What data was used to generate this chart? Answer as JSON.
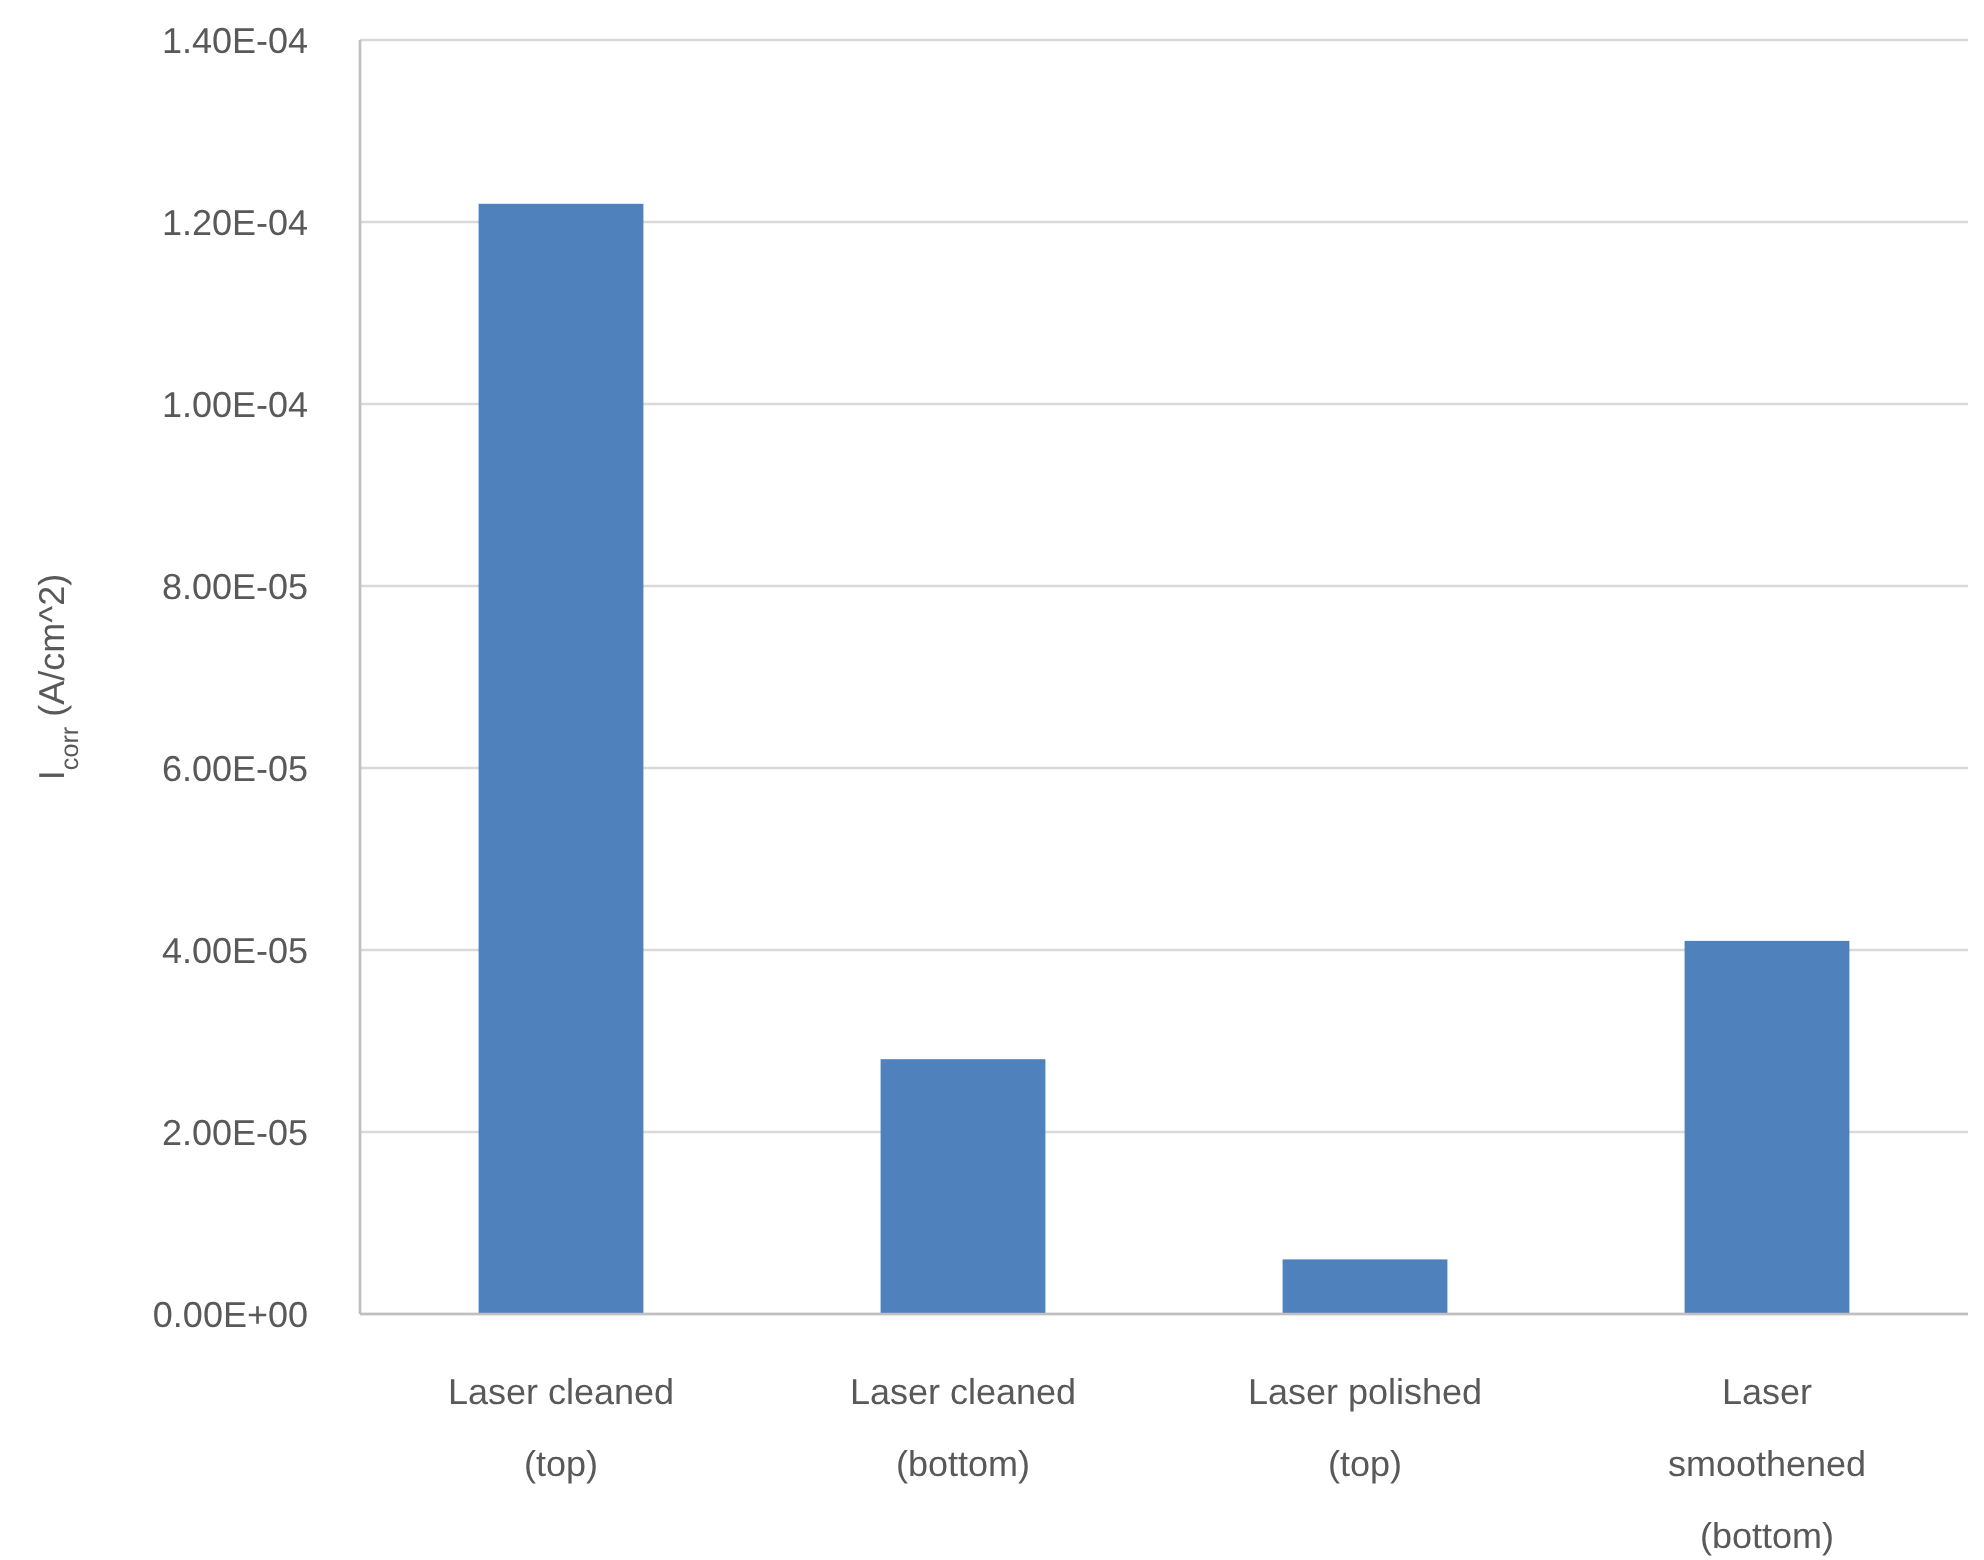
{
  "chart_data": {
    "type": "bar",
    "ylabel": "I$_{corr}$ (A/cm^2)",
    "categories": [
      "Laser cleaned (top)",
      "Laser cleaned (bottom)",
      "Laser polished (top)",
      "Laser smoothened (bottom)"
    ],
    "values": [
      0.000122,
      2.8e-05,
      6e-06,
      4.1e-05
    ],
    "color": "#4f81bd",
    "ylim": [
      0,
      0.00014
    ],
    "yticks": [
      {
        "value": 0,
        "label": "0.00E+00"
      },
      {
        "value": 2e-05,
        "label": "2.00E-05"
      },
      {
        "value": 4e-05,
        "label": "4.00E-05"
      },
      {
        "value": 6e-05,
        "label": "6.00E-05"
      },
      {
        "value": 8e-05,
        "label": "8.00E-05"
      },
      {
        "value": 0.0001,
        "label": "1.00E-04"
      },
      {
        "value": 0.00012,
        "label": "1.20E-04"
      },
      {
        "value": 0.00014,
        "label": "1.40E-04"
      }
    ],
    "grid": "y"
  }
}
